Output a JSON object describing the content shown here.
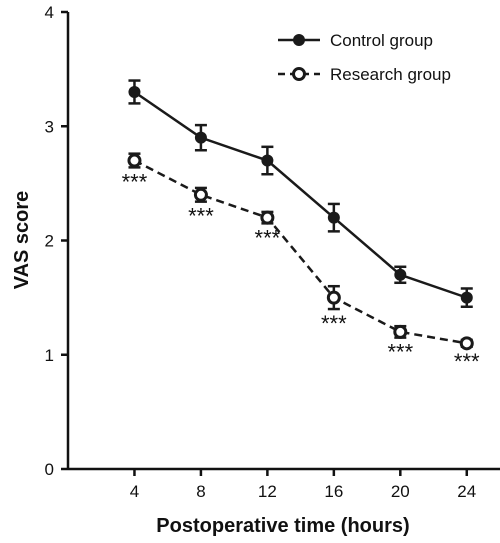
{
  "chart_data": {
    "type": "line",
    "title": "",
    "xlabel": "Postoperative time (hours)",
    "ylabel": "VAS score",
    "x": [
      4,
      8,
      12,
      16,
      20,
      24
    ],
    "xlim": [
      0,
      26
    ],
    "ylim": [
      0,
      4
    ],
    "xticks": [
      4,
      8,
      12,
      16,
      20,
      24
    ],
    "yticks": [
      0,
      1,
      2,
      3,
      4
    ],
    "grid": false,
    "legend_position": "top-right",
    "series": [
      {
        "name": "Control group",
        "values": [
          3.3,
          2.9,
          2.7,
          2.2,
          1.7,
          1.5
        ],
        "error": [
          0.1,
          0.11,
          0.12,
          0.12,
          0.07,
          0.08
        ],
        "marker": "filled-circle",
        "line_style": "solid",
        "color": "#1a1a1a"
      },
      {
        "name": "Research group",
        "values": [
          2.7,
          2.4,
          2.2,
          1.5,
          1.2,
          1.1
        ],
        "error": [
          0.06,
          0.06,
          0.05,
          0.1,
          0.05,
          0.03
        ],
        "marker": "open-circle",
        "line_style": "dashed",
        "color": "#1a1a1a"
      }
    ],
    "annotations": [
      {
        "x": 4,
        "text": "***"
      },
      {
        "x": 8,
        "text": "***"
      },
      {
        "x": 12,
        "text": "***"
      },
      {
        "x": 16,
        "text": "***"
      },
      {
        "x": 20,
        "text": "***"
      },
      {
        "x": 24,
        "text": "***"
      }
    ]
  }
}
